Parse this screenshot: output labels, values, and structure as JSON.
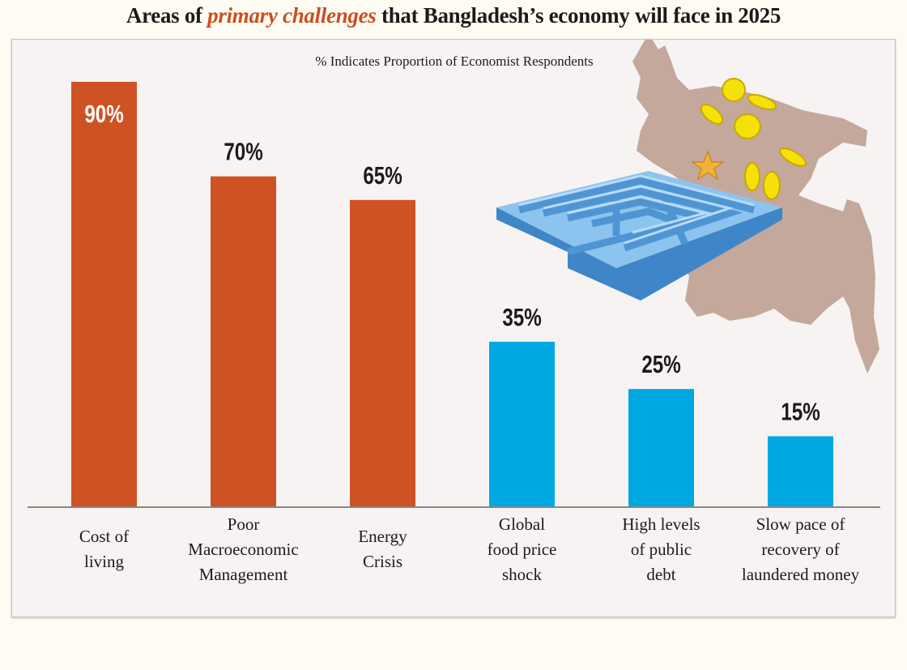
{
  "title": {
    "before": "Areas of ",
    "highlight": "primary challenges",
    "after": " that Bangladesh’s economy will face in 2025"
  },
  "colors": {
    "orange": "#cf5224",
    "blue": "#00a8e1",
    "highlight": "#c94f22",
    "map": "#c4a89c",
    "coin": "#f6e00a",
    "maze": "#5aa0d8"
  },
  "chart_data": {
    "type": "bar",
    "title": "Areas of primary challenges that Bangladesh’s economy will face in 2025",
    "subtitle": "% Indicates Proportion of Economist Respondents",
    "categories": [
      [
        "Cost of",
        "living"
      ],
      [
        "Poor",
        "Macroeconomic",
        "Management"
      ],
      [
        "Energy",
        "Crisis"
      ],
      [
        "Global",
        "food price",
        "shock"
      ],
      [
        "High levels",
        "of public",
        "debt"
      ],
      [
        "Slow pace of",
        "recovery of",
        "laundered money"
      ]
    ],
    "values": [
      90,
      70,
      65,
      35,
      25,
      15
    ],
    "value_labels": [
      "90%",
      "70%",
      "65%",
      "35%",
      "25%",
      "15%"
    ],
    "bar_colors": [
      "#cf5224",
      "#cf5224",
      "#cf5224",
      "#00a8e1",
      "#00a8e1",
      "#00a8e1"
    ],
    "ylim": [
      0,
      90
    ],
    "xlabel": "",
    "ylabel": "",
    "grid": false,
    "legend": "none"
  }
}
